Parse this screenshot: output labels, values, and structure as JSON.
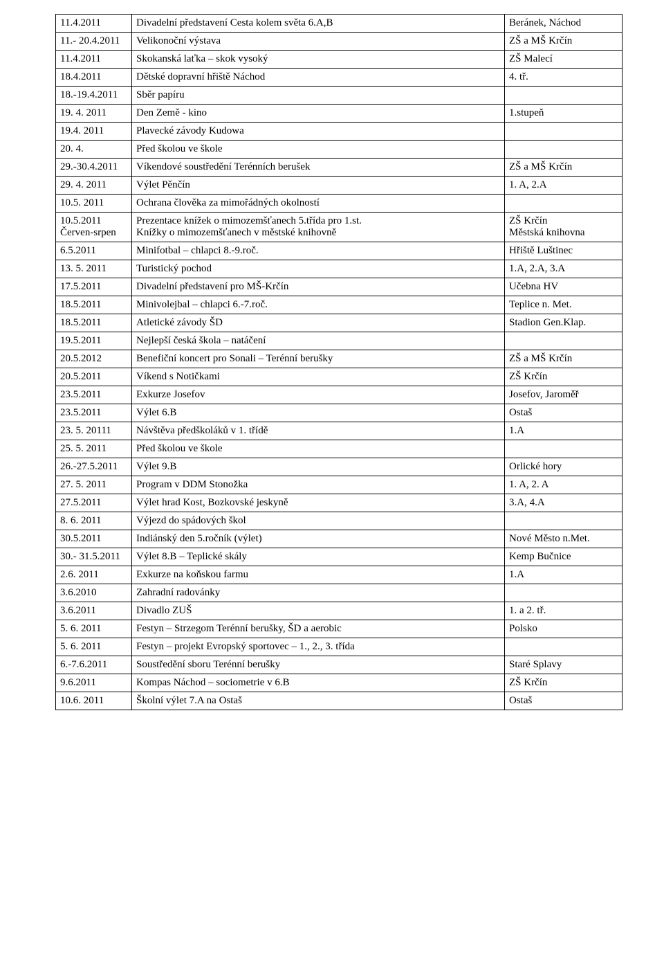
{
  "table": {
    "rows": [
      {
        "date": "11.4.2011",
        "event": "Divadelní představení Cesta kolem světa 6.A,B",
        "place": "Beránek, Náchod"
      },
      {
        "date": "11.- 20.4.2011",
        "event": "Velikonoční výstava",
        "place": "ZŠ a MŠ Krčín"
      },
      {
        "date": "11.4.2011",
        "event": "Skokanská laťka – skok vysoký",
        "place": "ZŠ Malecí"
      },
      {
        "date": "18.4.2011",
        "event": "Dětské dopravní hřiště  Náchod",
        "place": "4. tř."
      },
      {
        "date": "18.-19.4.2011",
        "event": "Sběr papíru",
        "place": ""
      },
      {
        "date": "19. 4. 2011",
        "event": "Den Země - kino",
        "place": "1.stupeň"
      },
      {
        "date": "19.4. 2011",
        "event": "Plavecké závody Kudowa",
        "place": ""
      },
      {
        "date": "20. 4.",
        "event": "Před školou ve škole",
        "place": ""
      },
      {
        "date": "29.-30.4.2011",
        "event": "Víkendové soustředění Terénních berušek",
        "place": "ZŠ a MŠ Krčín"
      },
      {
        "date": "29. 4. 2011",
        "event": "Výlet Pěnčín",
        "place": "1. A, 2.A"
      },
      {
        "date": "10.5. 2011",
        "event": "Ochrana člověka za mimořádných okolností",
        "place": ""
      },
      {
        "date": "10.5.2011\nČerven-srpen",
        "event": "Prezentace knížek o mimozemšťanech 5.třída pro 1.st.\nKnížky o mimozemšťanech v městské knihovně",
        "place": "ZŠ Krčín\nMěstská knihovna"
      },
      {
        "date": "6.5.2011",
        "event": "Minifotbal – chlapci 8.-9.roč.",
        "place": "Hřiště Luštinec"
      },
      {
        "date": "13. 5. 2011",
        "event": "Turistický pochod",
        "place": "1.A, 2.A, 3.A"
      },
      {
        "date": "17.5.2011",
        "event": "Divadelní představení pro MŠ-Krčín",
        "place": "Učebna HV"
      },
      {
        "date": "18.5.2011",
        "event": "Minivolejbal – chlapci 6.-7.roč.",
        "place": "Teplice n. Met."
      },
      {
        "date": "18.5.2011",
        "event": "Atletické závody ŠD",
        "place": "Stadion Gen.Klap."
      },
      {
        "date": "19.5.2011",
        "event": "Nejlepší česká škola – natáčení",
        "place": ""
      },
      {
        "date": "20.5.2012",
        "event": "Benefiční koncert pro Sonali – Terénní berušky",
        "place": "ZŠ a MŠ Krčín"
      },
      {
        "date": "20.5.2011",
        "event": "Víkend s Notičkami",
        "place": "ZŠ Krčín"
      },
      {
        "date": "23.5.2011",
        "event": "Exkurze Josefov",
        "place": "Josefov, Jaroměř"
      },
      {
        "date": "23.5.2011",
        "event": "Výlet 6.B",
        "place": "Ostaš"
      },
      {
        "date": "23. 5. 20111",
        "event": "Návštěva předškoláků v 1. třídě",
        "place": "1.A"
      },
      {
        "date": "25. 5. 2011",
        "event": "Před školou ve škole",
        "place": ""
      },
      {
        "date": "26.-27.5.2011",
        "event": "Výlet 9.B",
        "place": "Orlické hory"
      },
      {
        "date": "27. 5. 2011",
        "event": "Program v DDM Stonožka",
        "place": "1. A, 2. A"
      },
      {
        "date": "27.5.2011",
        "event": "Výlet hrad Kost, Bozkovské jeskyně",
        "place": "3.A, 4.A"
      },
      {
        "date": "8. 6. 2011",
        "event": "Výjezd do spádových škol",
        "place": ""
      },
      {
        "date": "30.5.2011",
        "event": "Indiánský den  5.ročník (výlet)",
        "place": "Nové Město n.Met."
      },
      {
        "date": "30.- 31.5.2011",
        "event": "Výlet 8.B – Teplické skály",
        "place": "Kemp Bučnice"
      },
      {
        "date": "2.6. 2011",
        "event": "Exkurze na koňskou farmu",
        "place": "1.A"
      },
      {
        "date": "3.6.2010",
        "event": "Zahradní radovánky",
        "place": ""
      },
      {
        "date": "3.6.2011",
        "event": "Divadlo ZUŠ",
        "place": "1. a 2. tř."
      },
      {
        "date": "5. 6. 2011",
        "event": "Festyn – Strzegom Terénní berušky, ŠD a aerobic",
        "place": "Polsko"
      },
      {
        "date": "5. 6. 2011",
        "event": "Festyn – projekt Evropský sportovec – 1., 2., 3. třída",
        "place": ""
      },
      {
        "date": "6.-7.6.2011",
        "event": "Soustředění sboru Terénní berušky",
        "place": "Staré Splavy"
      },
      {
        "date": "9.6.2011",
        "event": "Kompas Náchod – sociometrie v 6.B",
        "place": "ZŠ Krčín"
      },
      {
        "date": "10.6. 2011",
        "event": "Školní výlet 7.A na Ostaš",
        "place": "Ostaš"
      }
    ]
  }
}
